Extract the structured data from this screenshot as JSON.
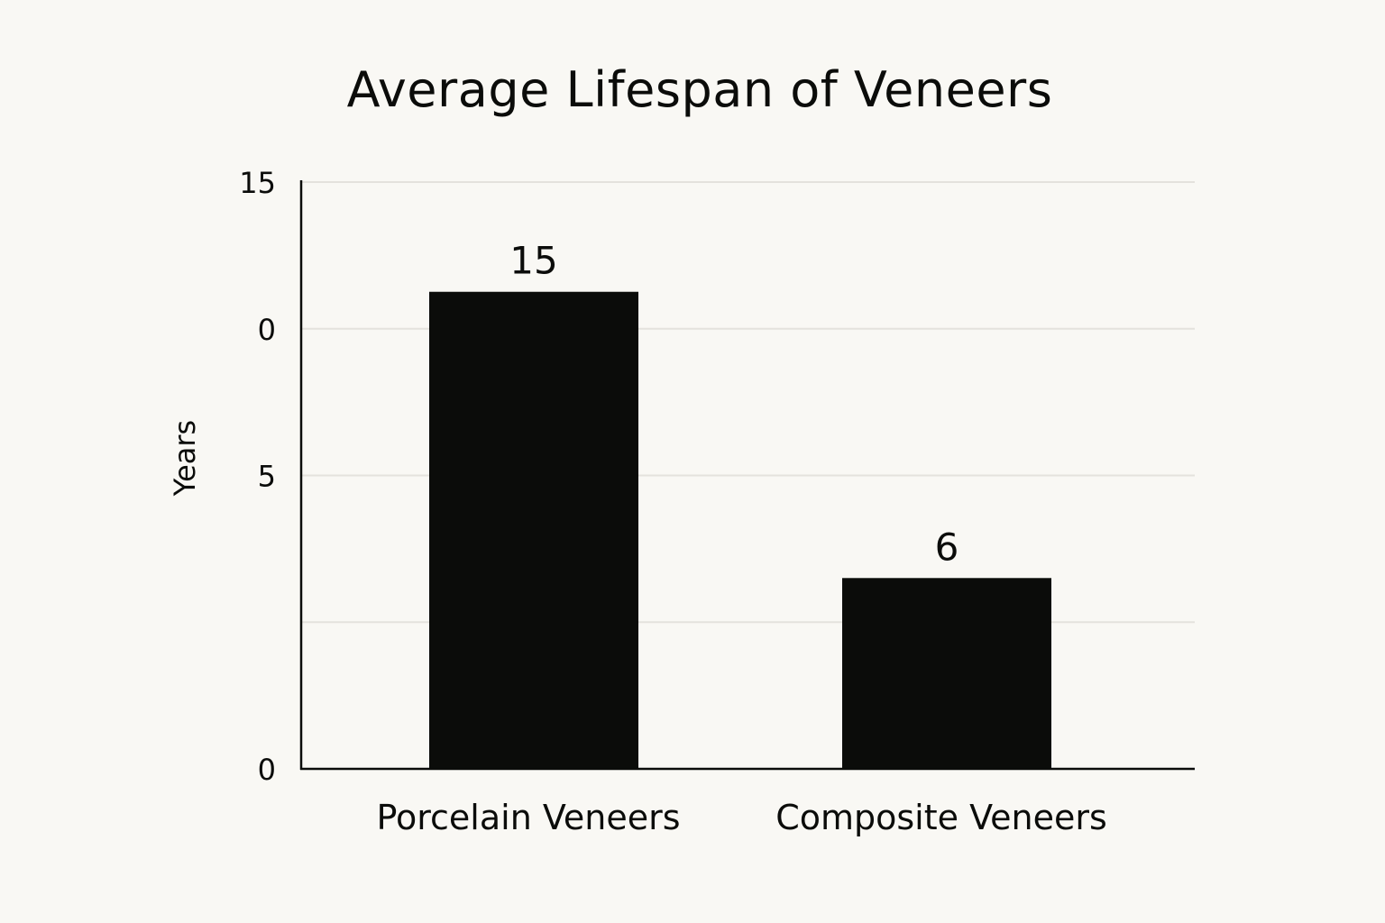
{
  "chart_data": {
    "type": "bar",
    "title": "Average Lifespan of Veneers",
    "xlabel": "",
    "ylabel": "Years",
    "categories": [
      "Porcelain Veneers",
      "Composite Veneers"
    ],
    "values": [
      15,
      6
    ],
    "data_labels": [
      "15",
      "6"
    ],
    "ytick_labels": [
      "15",
      "0",
      "5",
      "",
      "0"
    ],
    "grid": true,
    "bar_color": "#0b0c0a",
    "grid_color": "#e4e2dd"
  }
}
